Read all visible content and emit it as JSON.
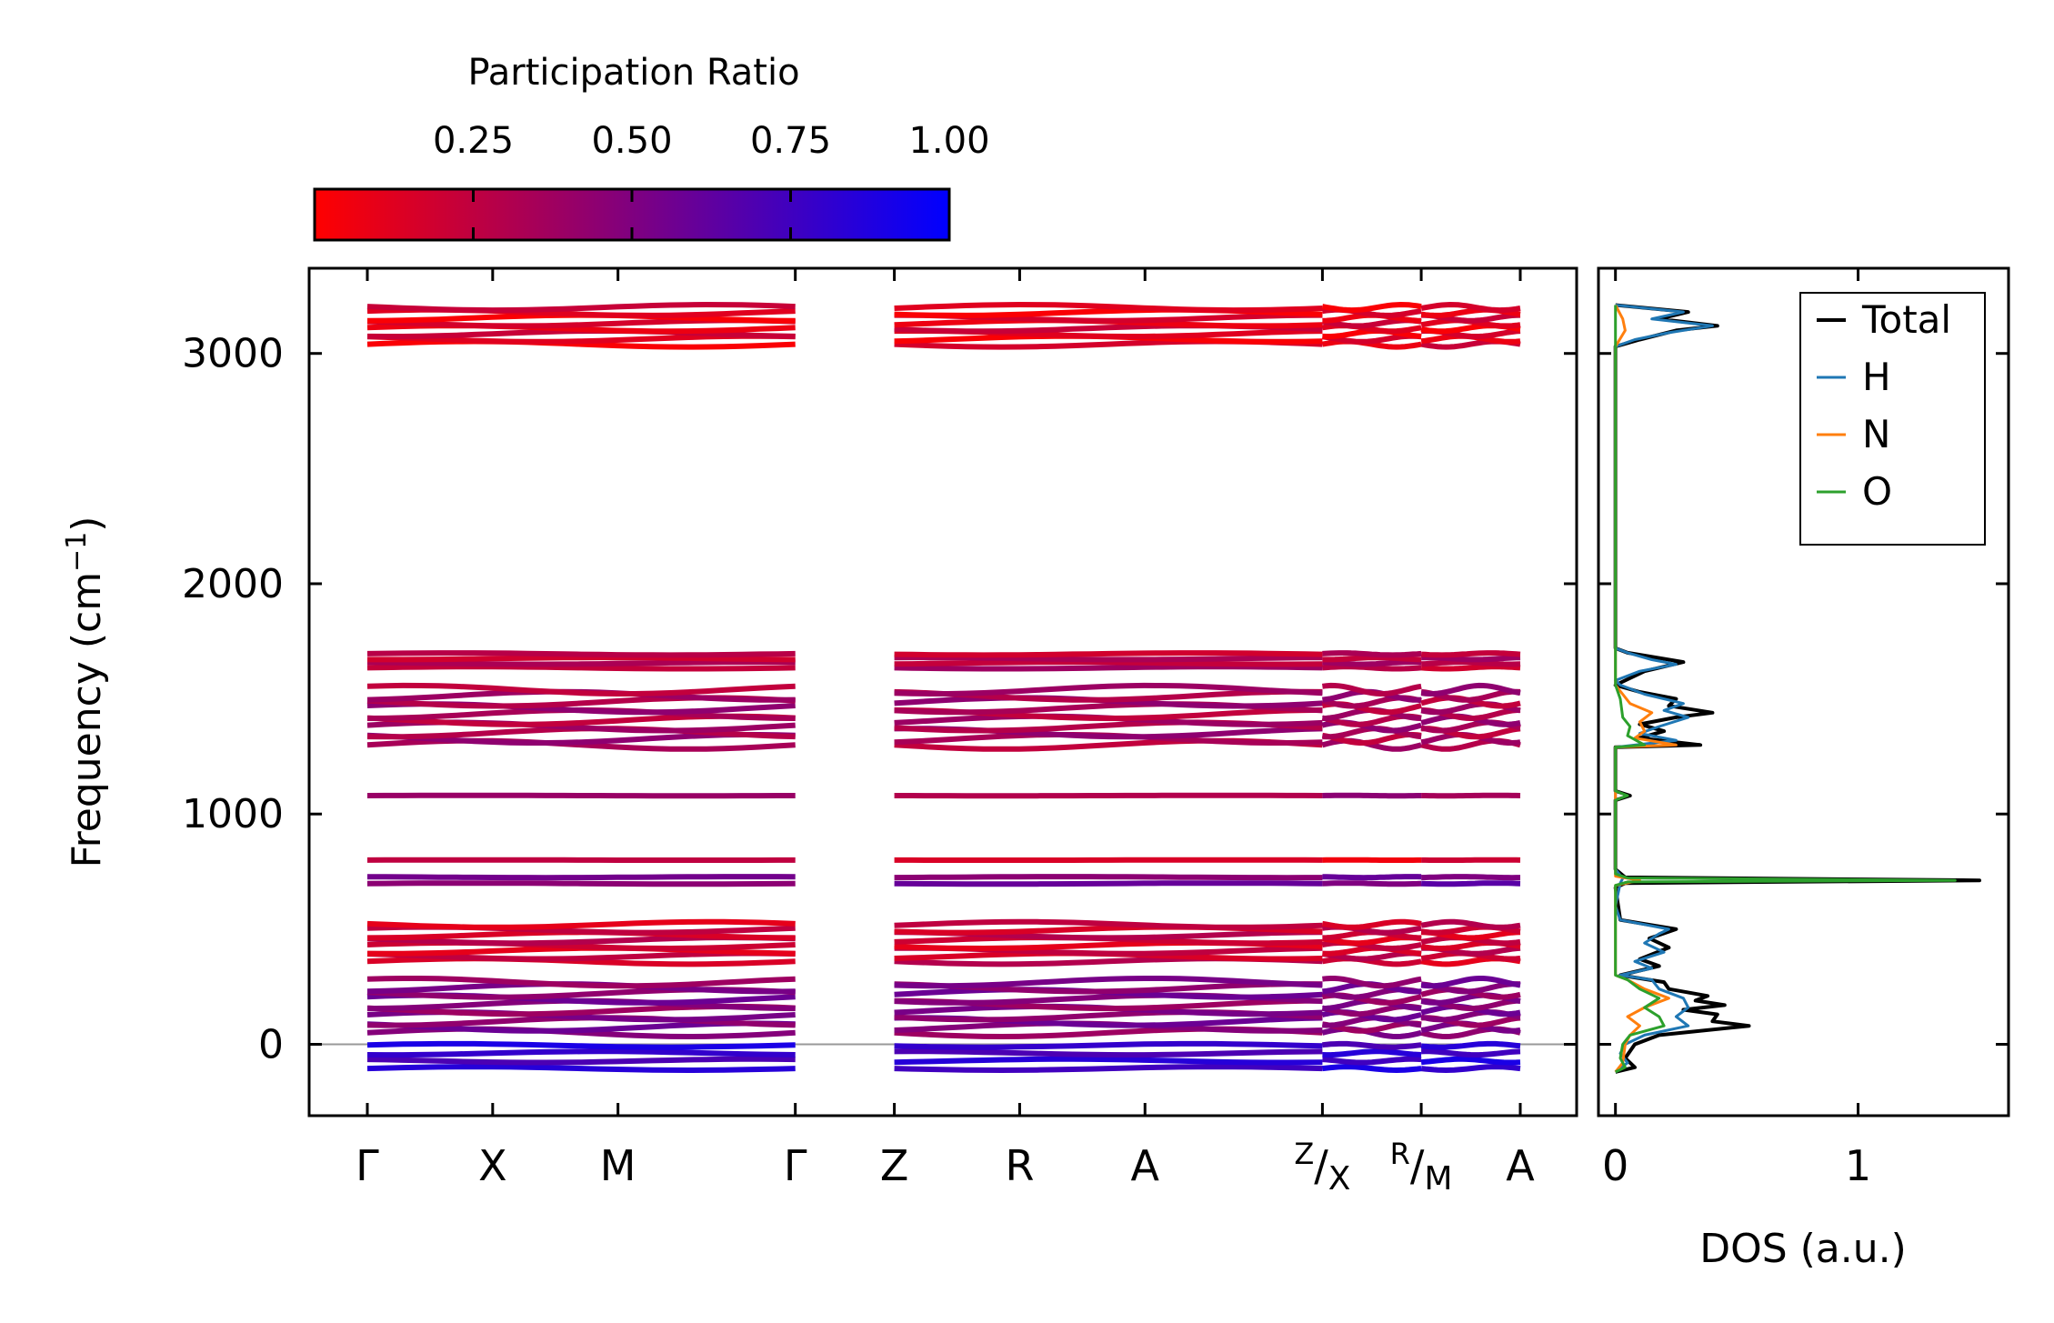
{
  "chart_data": [
    {
      "type": "band-structure",
      "ylabel_main": "Frequency (cm",
      "ylabel_sup": "−1",
      "ylabel_end": ")",
      "ylim": [
        -310,
        3370
      ],
      "yticks": [
        {
          "value": 0,
          "label": "0"
        },
        {
          "value": 1000,
          "label": "1000"
        },
        {
          "value": 2000,
          "label": "2000"
        },
        {
          "value": 3000,
          "label": "3000"
        }
      ],
      "path_ticks": [
        {
          "label": "Γ",
          "sup": "",
          "pos": 0.0
        },
        {
          "label": "X",
          "sup": "",
          "pos": 0.1087
        },
        {
          "label": "M",
          "sup": "",
          "pos": 0.2174
        },
        {
          "label": "Γ",
          "sup": "",
          "pos": 0.3712
        },
        {
          "label": "Z",
          "sup": "",
          "pos": 0.4571
        },
        {
          "label": "R",
          "sup": "",
          "pos": 0.5658
        },
        {
          "label": "A",
          "sup": "",
          "pos": 0.6745
        },
        {
          "label": "/X",
          "sup": "Z",
          "pos": 0.8284
        },
        {
          "label": "/M",
          "sup": "R",
          "pos": 0.9141
        },
        {
          "label": "A",
          "sup": "",
          "pos": 1.0
        }
      ],
      "segments": [
        [
          0,
          3
        ],
        [
          4,
          7
        ],
        [
          7,
          8
        ],
        [
          8,
          9
        ]
      ],
      "zero_line": 0,
      "color_by": "Participation Ratio",
      "band_groups": [
        {
          "center": 3120,
          "half_width": 80,
          "pr": 0.12,
          "count": 8
        },
        {
          "center": 1665,
          "half_width": 30,
          "pr": 0.28,
          "count": 4
        },
        {
          "center": 1420,
          "half_width": 120,
          "pr": 0.34,
          "count": 10
        },
        {
          "center": 1080,
          "half_width": 6,
          "pr": 0.35,
          "count": 1
        },
        {
          "center": 800,
          "half_width": 4,
          "pr": 0.15,
          "count": 1
        },
        {
          "center": 712,
          "half_width": 14,
          "pr": 0.55,
          "count": 2
        },
        {
          "center": 440,
          "half_width": 80,
          "pr": 0.2,
          "count": 8
        },
        {
          "center": 160,
          "half_width": 110,
          "pr": 0.48,
          "count": 10
        },
        {
          "center": -55,
          "half_width": 50,
          "pr": 0.8,
          "count": 4
        }
      ]
    },
    {
      "type": "line",
      "xlabel": "DOS (a.u.)",
      "xlim": [
        -0.07,
        1.62
      ],
      "xticks": [
        {
          "value": 0,
          "label": "0"
        },
        {
          "value": 1,
          "label": "1"
        }
      ],
      "series": [
        {
          "name": "Total",
          "color": "#000000",
          "points": [
            [
              -120,
              0.0
            ],
            [
              -100,
              0.08
            ],
            [
              -60,
              0.04
            ],
            [
              0,
              0.08
            ],
            [
              40,
              0.18
            ],
            [
              80,
              0.55
            ],
            [
              100,
              0.4
            ],
            [
              130,
              0.42
            ],
            [
              150,
              0.28
            ],
            [
              170,
              0.45
            ],
            [
              190,
              0.33
            ],
            [
              210,
              0.38
            ],
            [
              240,
              0.22
            ],
            [
              270,
              0.2
            ],
            [
              300,
              0.02
            ],
            [
              340,
              0.18
            ],
            [
              370,
              0.1
            ],
            [
              420,
              0.22
            ],
            [
              460,
              0.14
            ],
            [
              500,
              0.25
            ],
            [
              540,
              0.02
            ],
            [
              680,
              0.0
            ],
            [
              700,
              0.04
            ],
            [
              712,
              1.5
            ],
            [
              725,
              0.04
            ],
            [
              760,
              0.0
            ],
            [
              1060,
              0.0
            ],
            [
              1080,
              0.06
            ],
            [
              1100,
              0.0
            ],
            [
              1290,
              0.0
            ],
            [
              1300,
              0.35
            ],
            [
              1330,
              0.1
            ],
            [
              1360,
              0.2
            ],
            [
              1390,
              0.1
            ],
            [
              1420,
              0.25
            ],
            [
              1440,
              0.4
            ],
            [
              1470,
              0.22
            ],
            [
              1500,
              0.25
            ],
            [
              1530,
              0.1
            ],
            [
              1560,
              0.0
            ],
            [
              1620,
              0.12
            ],
            [
              1660,
              0.28
            ],
            [
              1700,
              0.05
            ],
            [
              1720,
              0.0
            ],
            [
              3030,
              0.0
            ],
            [
              3060,
              0.1
            ],
            [
              3100,
              0.25
            ],
            [
              3120,
              0.42
            ],
            [
              3150,
              0.18
            ],
            [
              3180,
              0.3
            ],
            [
              3210,
              0.0
            ]
          ]
        },
        {
          "name": "H",
          "color": "#1f77b4",
          "points": [
            [
              -120,
              0.0
            ],
            [
              -80,
              0.05
            ],
            [
              -40,
              0.02
            ],
            [
              0,
              0.04
            ],
            [
              40,
              0.12
            ],
            [
              80,
              0.3
            ],
            [
              120,
              0.25
            ],
            [
              160,
              0.3
            ],
            [
              200,
              0.28
            ],
            [
              240,
              0.18
            ],
            [
              280,
              0.15
            ],
            [
              300,
              0.02
            ],
            [
              330,
              0.15
            ],
            [
              360,
              0.08
            ],
            [
              400,
              0.2
            ],
            [
              440,
              0.12
            ],
            [
              480,
              0.18
            ],
            [
              500,
              0.22
            ],
            [
              540,
              0.02
            ],
            [
              600,
              0.0
            ],
            [
              700,
              0.02
            ],
            [
              720,
              0.03
            ],
            [
              760,
              0.0
            ],
            [
              1290,
              0.0
            ],
            [
              1320,
              0.25
            ],
            [
              1350,
              0.1
            ],
            [
              1380,
              0.18
            ],
            [
              1420,
              0.3
            ],
            [
              1450,
              0.2
            ],
            [
              1480,
              0.28
            ],
            [
              1520,
              0.12
            ],
            [
              1560,
              0.02
            ],
            [
              1580,
              0.0
            ],
            [
              1620,
              0.1
            ],
            [
              1650,
              0.25
            ],
            [
              1670,
              0.15
            ],
            [
              1700,
              0.05
            ],
            [
              1720,
              0.0
            ],
            [
              3030,
              0.0
            ],
            [
              3060,
              0.08
            ],
            [
              3090,
              0.22
            ],
            [
              3120,
              0.4
            ],
            [
              3150,
              0.15
            ],
            [
              3180,
              0.28
            ],
            [
              3210,
              0.0
            ]
          ]
        },
        {
          "name": "N",
          "color": "#ff7f0e",
          "points": [
            [
              -120,
              0.0
            ],
            [
              -80,
              0.03
            ],
            [
              0,
              0.04
            ],
            [
              40,
              0.06
            ],
            [
              80,
              0.1
            ],
            [
              120,
              0.05
            ],
            [
              160,
              0.12
            ],
            [
              200,
              0.22
            ],
            [
              240,
              0.12
            ],
            [
              280,
              0.05
            ],
            [
              300,
              0.0
            ],
            [
              690,
              0.0
            ],
            [
              712,
              0.1
            ],
            [
              730,
              0.0
            ],
            [
              1290,
              0.0
            ],
            [
              1300,
              0.25
            ],
            [
              1330,
              0.08
            ],
            [
              1360,
              0.12
            ],
            [
              1400,
              0.1
            ],
            [
              1440,
              0.15
            ],
            [
              1480,
              0.06
            ],
            [
              1520,
              0.03
            ],
            [
              1560,
              0.0
            ],
            [
              1700,
              0.0
            ],
            [
              3030,
              0.0
            ],
            [
              3100,
              0.04
            ],
            [
              3150,
              0.03
            ],
            [
              3210,
              0.0
            ]
          ]
        },
        {
          "name": "O",
          "color": "#2ca02c",
          "points": [
            [
              -120,
              0.0
            ],
            [
              -100,
              0.04
            ],
            [
              -60,
              0.02
            ],
            [
              0,
              0.03
            ],
            [
              40,
              0.06
            ],
            [
              80,
              0.2
            ],
            [
              120,
              0.18
            ],
            [
              160,
              0.12
            ],
            [
              200,
              0.18
            ],
            [
              240,
              0.1
            ],
            [
              280,
              0.05
            ],
            [
              300,
              0.0
            ],
            [
              690,
              0.0
            ],
            [
              705,
              0.05
            ],
            [
              712,
              1.4
            ],
            [
              722,
              0.05
            ],
            [
              740,
              0.0
            ],
            [
              1060,
              0.0
            ],
            [
              1080,
              0.05
            ],
            [
              1100,
              0.0
            ],
            [
              1290,
              0.0
            ],
            [
              1300,
              0.12
            ],
            [
              1340,
              0.05
            ],
            [
              1380,
              0.06
            ],
            [
              1420,
              0.03
            ],
            [
              1500,
              0.02
            ],
            [
              1560,
              0.0
            ],
            [
              3210,
              0.0
            ]
          ]
        }
      ],
      "legend": [
        "Total",
        "H",
        "N",
        "O"
      ],
      "legend_position": "top-right"
    }
  ],
  "colorbar": {
    "title": "Participation Ratio",
    "range": [
      0.0,
      1.0
    ],
    "start_color": "#ff0000",
    "end_color": "#0000ff",
    "ticks": [
      {
        "value": 0.25,
        "label": "0.25"
      },
      {
        "value": 0.5,
        "label": "0.50"
      },
      {
        "value": 0.75,
        "label": "0.75"
      },
      {
        "value": 1.0,
        "label": "1.00"
      }
    ]
  }
}
